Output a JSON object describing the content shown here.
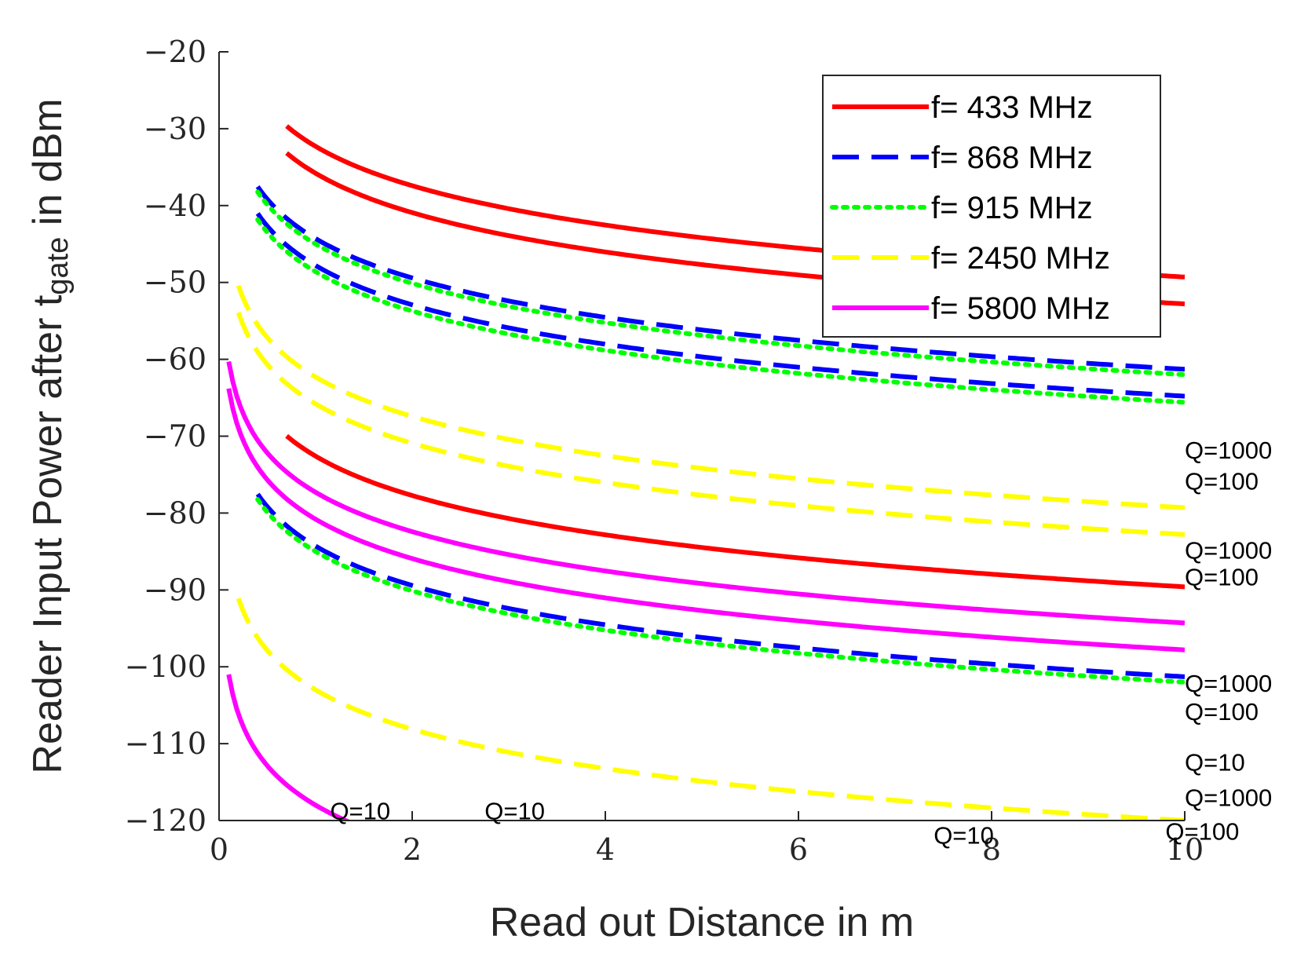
{
  "chart_data": {
    "type": "line",
    "xlabel": "Read out Distance in m",
    "ylabel": {
      "prefix": "Reader Input Power after t",
      "subscript": "gate",
      "suffix": " in dBm"
    },
    "xlim": [
      0,
      10
    ],
    "ylim": [
      -120,
      -20
    ],
    "xticks": [
      "0",
      "2",
      "4",
      "6",
      "8",
      "10"
    ],
    "yticks": [
      "−20",
      "−30",
      "−40",
      "−50",
      "−60",
      "−70",
      "−80",
      "−90",
      "−100",
      "−110",
      "−120"
    ],
    "grid": false,
    "legend_position": "top-right",
    "legend": [
      {
        "label": "f= 433 MHz",
        "color": "#ff0000",
        "style": "solid"
      },
      {
        "label": "f= 868 MHz",
        "color": "#0000ff",
        "style": "dashed"
      },
      {
        "label": "f= 915 MHz",
        "color": "#00ff00",
        "style": "dotted"
      },
      {
        "label": "f= 2450 MHz",
        "color": "#ffff00",
        "style": "dashed"
      },
      {
        "label": "f= 5800 MHz",
        "color": "#ff00ff",
        "style": "solid"
      }
    ],
    "series": [
      {
        "freq": "433",
        "q": "1000",
        "color": "#ff0000",
        "style": "solid",
        "x_start": 0.7,
        "y_at_1m": -32.3
      },
      {
        "freq": "433",
        "q": "100",
        "color": "#ff0000",
        "style": "solid",
        "x_start": 0.7,
        "y_at_1m": -35.8
      },
      {
        "freq": "433",
        "q": "10",
        "color": "#ff0000",
        "style": "solid",
        "x_start": 0.7,
        "y_at_1m": -72.6
      },
      {
        "freq": "868",
        "q": "1000",
        "color": "#0000ff",
        "style": "dashed",
        "x_start": 0.4,
        "y_at_1m": -44.3
      },
      {
        "freq": "868",
        "q": "100",
        "color": "#0000ff",
        "style": "dashed",
        "x_start": 0.4,
        "y_at_1m": -47.8
      },
      {
        "freq": "868",
        "q": "10",
        "color": "#0000ff",
        "style": "dashed",
        "x_start": 0.4,
        "y_at_1m": -84.3
      },
      {
        "freq": "915",
        "q": "1000",
        "color": "#00ff00",
        "style": "dotted",
        "x_start": 0.4,
        "y_at_1m": -45.0
      },
      {
        "freq": "915",
        "q": "100",
        "color": "#00ff00",
        "style": "dotted",
        "x_start": 0.4,
        "y_at_1m": -48.6
      },
      {
        "freq": "915",
        "q": "10",
        "color": "#00ff00",
        "style": "dotted",
        "x_start": 0.4,
        "y_at_1m": -85.0
      },
      {
        "freq": "2450",
        "q": "1000",
        "color": "#ffff00",
        "style": "dashed",
        "x_start": 0.2,
        "y_at_1m": -62.3
      },
      {
        "freq": "2450",
        "q": "100",
        "color": "#ffff00",
        "style": "dashed",
        "x_start": 0.2,
        "y_at_1m": -65.8
      },
      {
        "freq": "2450",
        "q": "10",
        "color": "#ffff00",
        "style": "dashed",
        "x_start": 0.2,
        "y_at_1m": -103.0
      },
      {
        "freq": "5800",
        "q": "1000",
        "color": "#ff00ff",
        "style": "solid",
        "x_start": 0.1,
        "y_at_1m": -77.3
      },
      {
        "freq": "5800",
        "q": "100",
        "color": "#ff00ff",
        "style": "solid",
        "x_start": 0.1,
        "y_at_1m": -80.8
      },
      {
        "freq": "5800",
        "q": "10",
        "color": "#ff00ff",
        "style": "solid",
        "x_start": 0.1,
        "y_at_1m": -118.0
      }
    ],
    "annotations": [
      {
        "text": "Q=1000",
        "x": 10.0,
        "y": -71.8,
        "series": "433 MHz Q=1000"
      },
      {
        "text": "Q=100",
        "x": 10.0,
        "y": -75.8,
        "series": "433 MHz Q=100"
      },
      {
        "text": "Q=1000",
        "x": 10.0,
        "y": -84.8,
        "series": "915 MHz Q=1000"
      },
      {
        "text": "Q=100",
        "x": 10.0,
        "y": -88.3,
        "series": "915 MHz Q=100"
      },
      {
        "text": "Q=1000",
        "x": 10.0,
        "y": -102.1,
        "series": "2450 MHz Q=1000"
      },
      {
        "text": "Q=100",
        "x": 10.0,
        "y": -105.8,
        "series": "2450 MHz Q=100"
      },
      {
        "text": "Q=10",
        "x": 10.0,
        "y": -112.4,
        "series": "433 MHz Q=10"
      },
      {
        "text": "Q=1000",
        "x": 10.0,
        "y": -117.0,
        "series": "5800 MHz Q=1000"
      },
      {
        "text": "Q=100",
        "x": 9.8,
        "y": -121.4,
        "series": "5800 MHz Q=100"
      },
      {
        "text": "Q=10",
        "x": 1.15,
        "y": -118.7,
        "series": "5800 MHz Q=10"
      },
      {
        "text": "Q=10",
        "x": 2.75,
        "y": -118.7,
        "series": "2450 MHz Q=10"
      },
      {
        "text": "Q=10",
        "x": 7.4,
        "y": -121.9,
        "series": "868 MHz Q=10"
      }
    ]
  }
}
